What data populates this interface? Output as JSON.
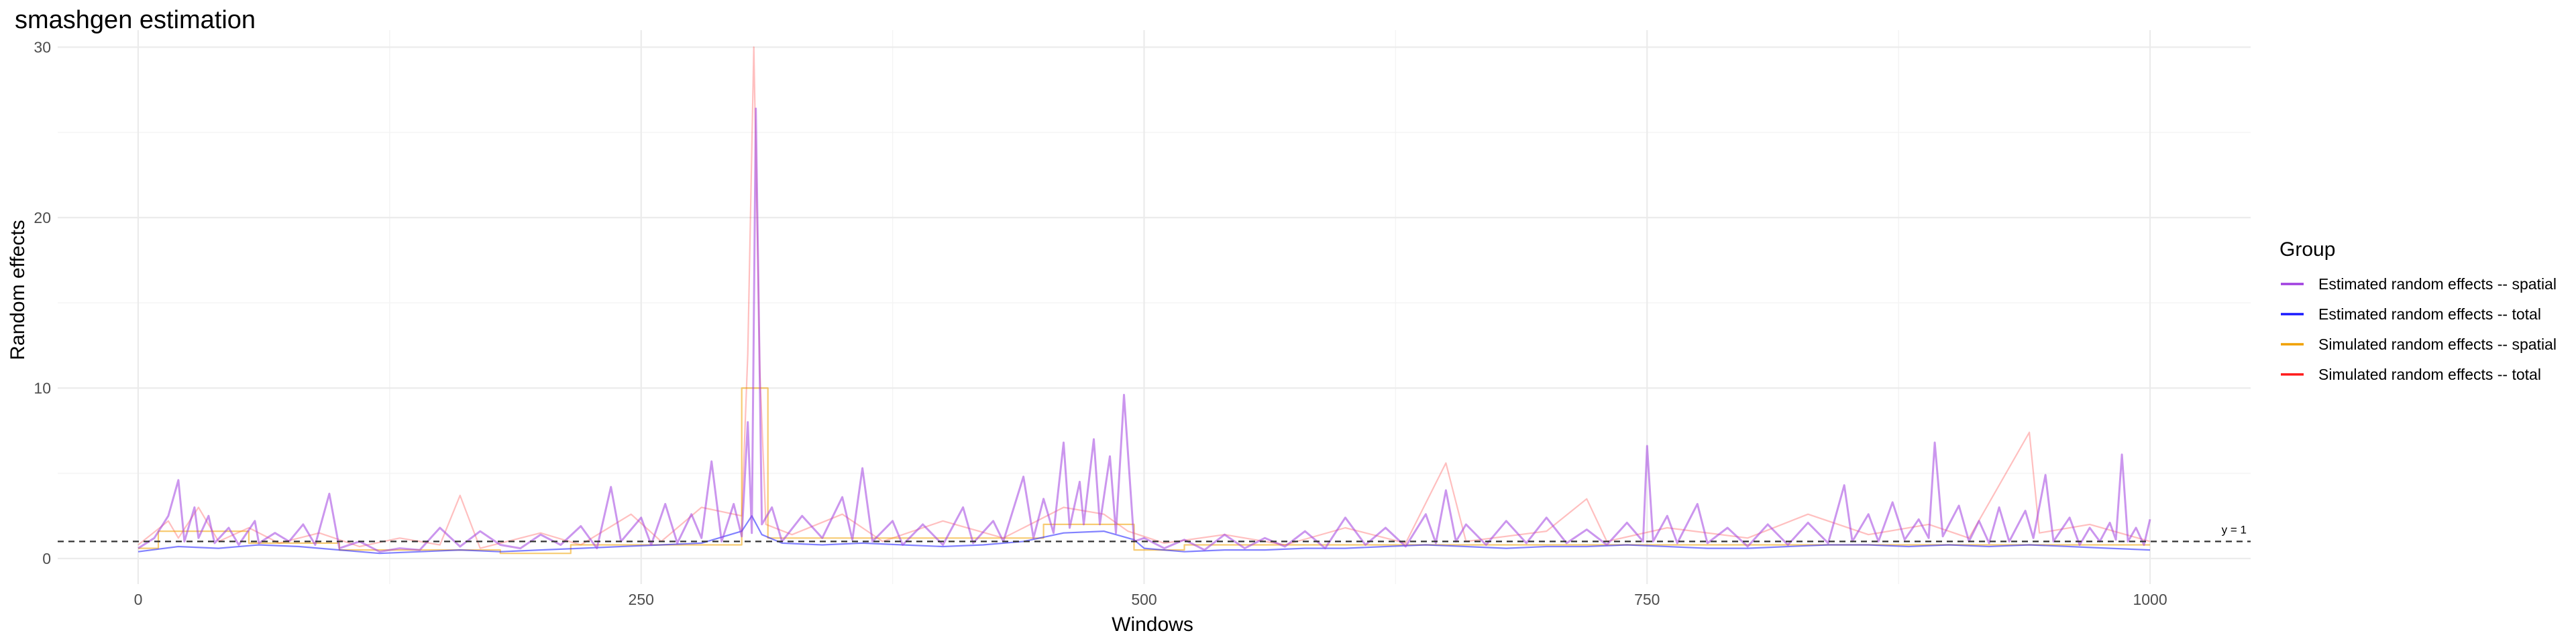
{
  "chart_data": {
    "type": "line",
    "title": "smashgen estimation",
    "xlabel": "Windows",
    "ylabel": "Random effects",
    "xlim": [
      -40,
      1050
    ],
    "ylim": [
      -1.5,
      31
    ],
    "x_ticks": [
      0,
      250,
      500,
      750,
      1000
    ],
    "y_ticks": [
      0,
      10,
      20,
      30
    ],
    "grid": true,
    "legend": {
      "title": "Group",
      "position": "right",
      "entries": [
        {
          "label": "Estimated random effects -- spatial",
          "color": "#a040e0"
        },
        {
          "label": "Estimated random effects -- total",
          "color": "#1a1aff"
        },
        {
          "label": "Simulated random effects -- spatial",
          "color": "#f0a000"
        },
        {
          "label": "Simulated random effects -- total",
          "color": "#ff1a1a"
        }
      ]
    },
    "reference_line": {
      "y": 1,
      "label": "y = 1",
      "style": "dashed"
    },
    "series": [
      {
        "name": "Estimated random effects -- spatial",
        "color": "#a040e0",
        "points": [
          [
            0,
            0.6
          ],
          [
            8,
            1.2
          ],
          [
            15,
            2.5
          ],
          [
            20,
            4.6
          ],
          [
            23,
            1.0
          ],
          [
            28,
            3.0
          ],
          [
            30,
            1.2
          ],
          [
            35,
            2.5
          ],
          [
            38,
            0.9
          ],
          [
            45,
            1.8
          ],
          [
            50,
            0.8
          ],
          [
            58,
            2.2
          ],
          [
            60,
            0.9
          ],
          [
            68,
            1.5
          ],
          [
            75,
            1.0
          ],
          [
            82,
            2.0
          ],
          [
            88,
            0.8
          ],
          [
            95,
            3.8
          ],
          [
            100,
            0.6
          ],
          [
            110,
            1.0
          ],
          [
            120,
            0.4
          ],
          [
            130,
            0.6
          ],
          [
            140,
            0.5
          ],
          [
            150,
            1.8
          ],
          [
            160,
            0.7
          ],
          [
            170,
            1.6
          ],
          [
            180,
            0.8
          ],
          [
            190,
            0.6
          ],
          [
            200,
            1.4
          ],
          [
            210,
            0.8
          ],
          [
            220,
            1.9
          ],
          [
            228,
            0.6
          ],
          [
            235,
            4.2
          ],
          [
            240,
            1.0
          ],
          [
            250,
            2.4
          ],
          [
            255,
            0.8
          ],
          [
            262,
            3.2
          ],
          [
            268,
            0.9
          ],
          [
            275,
            2.6
          ],
          [
            280,
            1.2
          ],
          [
            285,
            5.7
          ],
          [
            290,
            1.0
          ],
          [
            296,
            3.2
          ],
          [
            300,
            1.3
          ],
          [
            303,
            8.0
          ],
          [
            305,
            1.5
          ],
          [
            307,
            26.4
          ],
          [
            310,
            2.0
          ],
          [
            315,
            3.0
          ],
          [
            320,
            1.0
          ],
          [
            330,
            2.5
          ],
          [
            340,
            1.2
          ],
          [
            350,
            3.6
          ],
          [
            355,
            1.1
          ],
          [
            360,
            5.3
          ],
          [
            365,
            1.0
          ],
          [
            375,
            2.2
          ],
          [
            380,
            0.8
          ],
          [
            390,
            2.0
          ],
          [
            400,
            0.8
          ],
          [
            410,
            3.0
          ],
          [
            415,
            0.9
          ],
          [
            425,
            2.2
          ],
          [
            430,
            1.0
          ],
          [
            440,
            4.8
          ],
          [
            445,
            1.2
          ],
          [
            450,
            3.5
          ],
          [
            455,
            1.5
          ],
          [
            460,
            6.8
          ],
          [
            463,
            1.8
          ],
          [
            468,
            4.5
          ],
          [
            470,
            2.0
          ],
          [
            475,
            7.0
          ],
          [
            478,
            2.0
          ],
          [
            483,
            6.0
          ],
          [
            486,
            1.5
          ],
          [
            490,
            9.6
          ],
          [
            495,
            1.0
          ],
          [
            500,
            1.2
          ],
          [
            510,
            0.6
          ],
          [
            520,
            1.1
          ],
          [
            530,
            0.5
          ],
          [
            540,
            1.4
          ],
          [
            550,
            0.6
          ],
          [
            560,
            1.2
          ],
          [
            570,
            0.7
          ],
          [
            580,
            1.6
          ],
          [
            590,
            0.6
          ],
          [
            600,
            2.4
          ],
          [
            610,
            0.8
          ],
          [
            620,
            1.8
          ],
          [
            630,
            0.7
          ],
          [
            640,
            2.6
          ],
          [
            645,
            0.9
          ],
          [
            650,
            4.0
          ],
          [
            655,
            1.0
          ],
          [
            660,
            2.0
          ],
          [
            670,
            0.8
          ],
          [
            680,
            2.2
          ],
          [
            690,
            0.9
          ],
          [
            700,
            2.4
          ],
          [
            710,
            0.9
          ],
          [
            720,
            1.7
          ],
          [
            730,
            0.8
          ],
          [
            740,
            2.1
          ],
          [
            748,
            1.0
          ],
          [
            750,
            6.6
          ],
          [
            753,
            1.0
          ],
          [
            760,
            2.5
          ],
          [
            765,
            0.9
          ],
          [
            775,
            3.2
          ],
          [
            780,
            0.9
          ],
          [
            790,
            1.8
          ],
          [
            800,
            0.7
          ],
          [
            810,
            2.0
          ],
          [
            820,
            0.8
          ],
          [
            830,
            2.1
          ],
          [
            840,
            0.9
          ],
          [
            848,
            4.3
          ],
          [
            852,
            1.0
          ],
          [
            860,
            2.6
          ],
          [
            865,
            1.0
          ],
          [
            872,
            3.3
          ],
          [
            878,
            1.1
          ],
          [
            885,
            2.3
          ],
          [
            890,
            1.2
          ],
          [
            893,
            6.8
          ],
          [
            897,
            1.3
          ],
          [
            905,
            3.1
          ],
          [
            910,
            1.0
          ],
          [
            915,
            2.2
          ],
          [
            920,
            0.9
          ],
          [
            925,
            3.0
          ],
          [
            930,
            1.0
          ],
          [
            938,
            2.8
          ],
          [
            942,
            1.2
          ],
          [
            948,
            4.9
          ],
          [
            952,
            1.0
          ],
          [
            960,
            2.4
          ],
          [
            965,
            0.8
          ],
          [
            970,
            1.8
          ],
          [
            975,
            1.0
          ],
          [
            980,
            2.1
          ],
          [
            983,
            1.1
          ],
          [
            986,
            6.1
          ],
          [
            989,
            1.0
          ],
          [
            993,
            1.8
          ],
          [
            997,
            0.8
          ],
          [
            1000,
            2.3
          ]
        ]
      },
      {
        "name": "Estimated random effects -- total",
        "color": "#1a1aff",
        "points": [
          [
            0,
            0.4
          ],
          [
            20,
            0.7
          ],
          [
            40,
            0.6
          ],
          [
            60,
            0.8
          ],
          [
            80,
            0.7
          ],
          [
            100,
            0.5
          ],
          [
            120,
            0.3
          ],
          [
            140,
            0.4
          ],
          [
            160,
            0.5
          ],
          [
            180,
            0.4
          ],
          [
            200,
            0.5
          ],
          [
            220,
            0.6
          ],
          [
            240,
            0.7
          ],
          [
            260,
            0.8
          ],
          [
            280,
            0.9
          ],
          [
            300,
            1.6
          ],
          [
            305,
            2.5
          ],
          [
            310,
            1.4
          ],
          [
            320,
            0.9
          ],
          [
            340,
            0.8
          ],
          [
            360,
            0.9
          ],
          [
            380,
            0.8
          ],
          [
            400,
            0.7
          ],
          [
            420,
            0.8
          ],
          [
            440,
            1.0
          ],
          [
            460,
            1.5
          ],
          [
            480,
            1.6
          ],
          [
            495,
            1.1
          ],
          [
            500,
            0.6
          ],
          [
            520,
            0.4
          ],
          [
            540,
            0.5
          ],
          [
            560,
            0.5
          ],
          [
            580,
            0.6
          ],
          [
            600,
            0.6
          ],
          [
            620,
            0.7
          ],
          [
            640,
            0.8
          ],
          [
            660,
            0.7
          ],
          [
            680,
            0.6
          ],
          [
            700,
            0.7
          ],
          [
            720,
            0.7
          ],
          [
            740,
            0.8
          ],
          [
            760,
            0.7
          ],
          [
            780,
            0.6
          ],
          [
            800,
            0.6
          ],
          [
            820,
            0.7
          ],
          [
            840,
            0.8
          ],
          [
            860,
            0.8
          ],
          [
            880,
            0.7
          ],
          [
            900,
            0.8
          ],
          [
            920,
            0.7
          ],
          [
            940,
            0.8
          ],
          [
            960,
            0.7
          ],
          [
            980,
            0.6
          ],
          [
            1000,
            0.5
          ]
        ]
      },
      {
        "name": "Simulated random effects -- spatial",
        "color": "#f0a000",
        "points": [
          [
            0,
            0.6
          ],
          [
            10,
            0.6
          ],
          [
            10,
            1.6
          ],
          [
            55,
            1.6
          ],
          [
            55,
            0.9
          ],
          [
            100,
            0.9
          ],
          [
            100,
            0.5
          ],
          [
            180,
            0.5
          ],
          [
            180,
            0.3
          ],
          [
            215,
            0.3
          ],
          [
            215,
            0.8
          ],
          [
            300,
            0.8
          ],
          [
            300,
            10.0
          ],
          [
            313,
            10.0
          ],
          [
            313,
            1.2
          ],
          [
            450,
            1.2
          ],
          [
            450,
            2.0
          ],
          [
            495,
            2.0
          ],
          [
            495,
            0.5
          ],
          [
            520,
            0.5
          ],
          [
            520,
            0.8
          ],
          [
            1000,
            0.8
          ]
        ]
      },
      {
        "name": "Simulated random effects -- total",
        "color": "#ff1a1a",
        "points": [
          [
            0,
            0.8
          ],
          [
            15,
            2.2
          ],
          [
            20,
            1.2
          ],
          [
            30,
            3.0
          ],
          [
            40,
            1.0
          ],
          [
            55,
            1.8
          ],
          [
            70,
            0.9
          ],
          [
            90,
            1.5
          ],
          [
            110,
            0.7
          ],
          [
            130,
            1.2
          ],
          [
            150,
            0.8
          ],
          [
            160,
            3.7
          ],
          [
            170,
            0.6
          ],
          [
            200,
            1.5
          ],
          [
            220,
            0.8
          ],
          [
            245,
            2.6
          ],
          [
            260,
            1.0
          ],
          [
            280,
            3.0
          ],
          [
            300,
            2.5
          ],
          [
            303,
            12.0
          ],
          [
            306,
            30.0
          ],
          [
            309,
            11.0
          ],
          [
            312,
            2.0
          ],
          [
            325,
            1.4
          ],
          [
            350,
            2.6
          ],
          [
            370,
            1.0
          ],
          [
            400,
            2.2
          ],
          [
            430,
            1.2
          ],
          [
            460,
            3.0
          ],
          [
            480,
            2.6
          ],
          [
            492,
            1.6
          ],
          [
            510,
            0.9
          ],
          [
            540,
            1.4
          ],
          [
            570,
            0.8
          ],
          [
            600,
            1.8
          ],
          [
            630,
            0.9
          ],
          [
            650,
            5.6
          ],
          [
            660,
            1.0
          ],
          [
            700,
            1.6
          ],
          [
            720,
            3.5
          ],
          [
            730,
            1.0
          ],
          [
            760,
            1.8
          ],
          [
            800,
            1.2
          ],
          [
            830,
            2.6
          ],
          [
            860,
            1.4
          ],
          [
            890,
            2.0
          ],
          [
            910,
            1.2
          ],
          [
            940,
            7.4
          ],
          [
            945,
            1.5
          ],
          [
            970,
            2.0
          ],
          [
            1000,
            1.0
          ]
        ]
      }
    ]
  }
}
